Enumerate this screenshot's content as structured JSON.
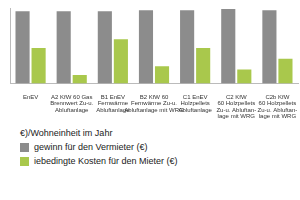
{
  "chart_data": {
    "type": "bar",
    "subtitle": "€)/Wohneinheit im Jahr",
    "categories": [
      "EnEV",
      "A2 KfW 60 Gas\nBrennwert Zu-u.\nAbluftanlage",
      "B1 EnEV\nFernwärme\nAbluftanlage",
      "B2 KfW 60\nFernwärme Zu-u.\nAbluftanlage mit WRG",
      "C1 EnEV\nHolzpellets\nAbluftanlage",
      "C2 KfW\n60 Holzpellets\nZu-u. Abluftan-\nlage mit WRG",
      "C2b KfW\n60 Holzpellets\nZu-u. Abluftan-\nlage mit WRG"
    ],
    "series": [
      {
        "name": "gewinn für den Vermieter (€)",
        "color": "#8c8c8c",
        "values": [
          67,
          67,
          67,
          68,
          68,
          69,
          68
        ]
      },
      {
        "name": "iebedingte Kosten für den Mieter (€)",
        "color": "#a9c84c",
        "values": [
          33,
          8,
          41,
          16,
          33,
          13,
          23
        ]
      }
    ],
    "ylim": [
      0,
      70
    ],
    "grid": false,
    "tick_labels": "x",
    "legend": "bottom"
  }
}
